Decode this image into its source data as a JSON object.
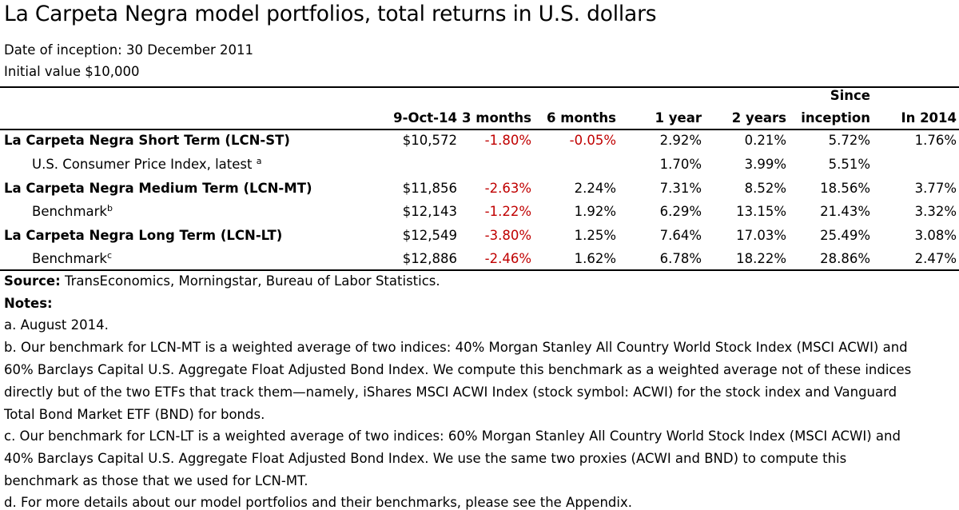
{
  "title": "La Carpeta Negra model portfolios, total returns in U.S. dollars",
  "inception": "Date of inception: 30 December 2011",
  "initial_value": "Initial value $10,000",
  "columns": [
    "9-Oct-14",
    "3 months",
    "6 months",
    "1 year",
    "2 years",
    "Since",
    "inception",
    "In 2014"
  ],
  "rows": [
    {
      "label": "La Carpeta Negra Short Term (LCN-ST)",
      "sup": "",
      "cells": [
        "$10,572",
        "-1.80%",
        "-0.05%",
        "2.92%",
        "0.21%",
        "5.72%",
        "1.76%"
      ]
    },
    {
      "label": "U.S. Consumer Price Index, latest",
      "sup": "a",
      "cells": [
        "",
        "",
        "",
        "1.70%",
        "3.99%",
        "5.51%",
        ""
      ]
    },
    {
      "label": "La Carpeta Negra Medium Term (LCN-MT)",
      "sup": "",
      "cells": [
        "$11,856",
        "-2.63%",
        "2.24%",
        "7.31%",
        "8.52%",
        "18.56%",
        "3.77%"
      ]
    },
    {
      "label": "Benchmark",
      "sup": "b",
      "cells": [
        "$12,143",
        "-1.22%",
        "1.92%",
        "6.29%",
        "13.15%",
        "21.43%",
        "3.32%"
      ]
    },
    {
      "label": "La Carpeta Negra Long Term (LCN-LT)",
      "sup": "",
      "cells": [
        "$12,549",
        "-3.80%",
        "1.25%",
        "7.64%",
        "17.03%",
        "25.49%",
        "3.08%"
      ]
    },
    {
      "label": "Benchmark",
      "sup": "c",
      "cells": [
        "$12,886",
        "-2.46%",
        "1.62%",
        "6.78%",
        "18.22%",
        "28.86%",
        "2.47%"
      ]
    }
  ],
  "negative_color": "#c00000",
  "source_label": "Source:",
  "source_text": "TransEconomics, Morningstar, Bureau of Labor Statistics.",
  "notes_label": "Notes:",
  "notes": [
    "a. August 2014.",
    "b. Our benchmark for LCN-MT is a weighted average of two indices: 40% Morgan Stanley All Country World Stock Index (MSCI ACWI) and",
    "60% Barclays Capital U.S. Aggregate Float Adjusted Bond Index. We compute this benchmark as a weighted average not of these indices",
    "directly but of the two ETFs that track them—namely, iShares MSCI ACWI Index (stock symbol: ACWI) for the stock index and Vanguard",
    "Total Bond Market ETF (BND) for bonds.",
    "c. Our benchmark for LCN-LT is a weighted average of two indices: 60% Morgan Stanley All Country World Stock Index (MSCI ACWI) and",
    "40% Barclays Capital U.S. Aggregate Float Adjusted Bond Index. We use the same two proxies (ACWI and BND) to compute this",
    "benchmark as those that we used for LCN-MT.",
    "d. For more details about our model portfolios and their benchmarks, please see the Appendix."
  ]
}
